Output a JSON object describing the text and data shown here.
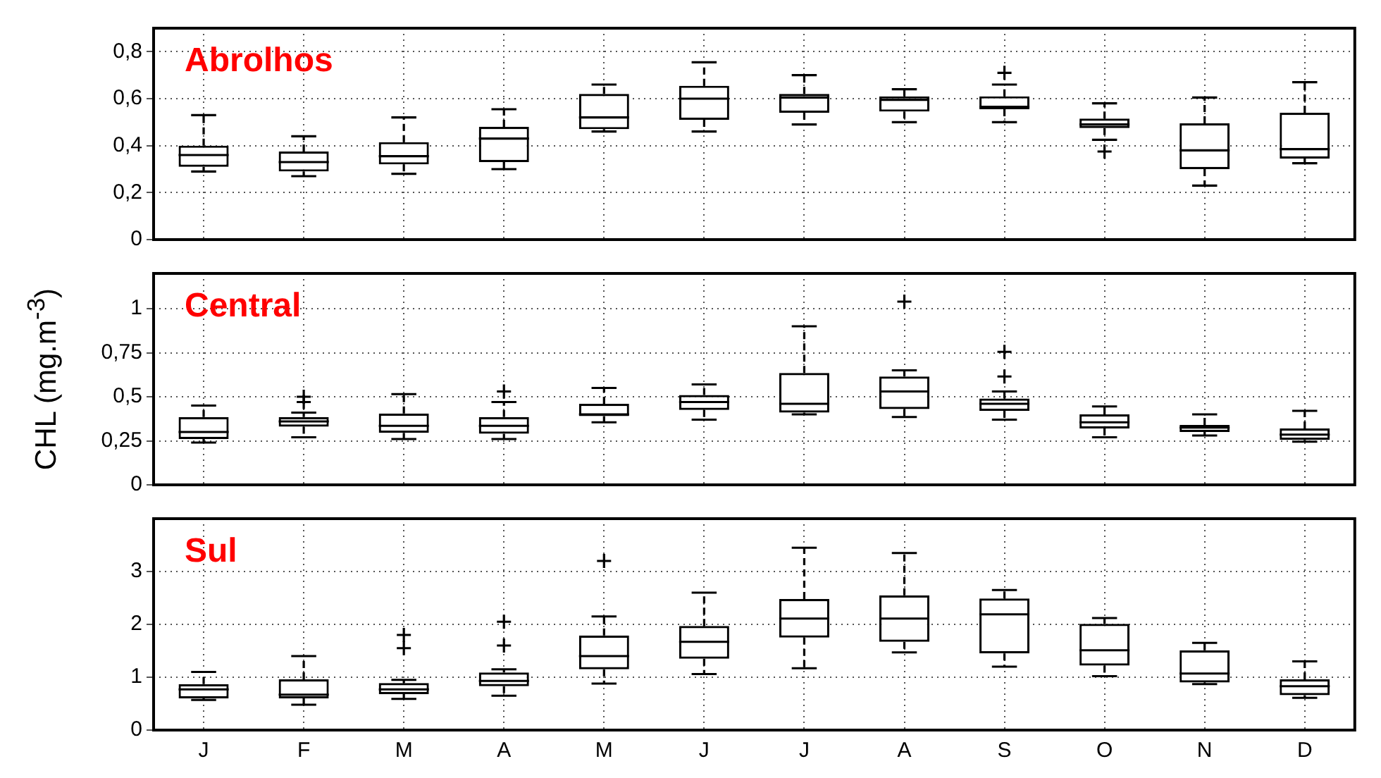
{
  "chart_data": [
    {
      "type": "box",
      "title": "Abrolhos",
      "categories": [
        null,
        null,
        null,
        null,
        null,
        null,
        null,
        null,
        null,
        null,
        null,
        null
      ],
      "ylim": [
        0,
        0.9
      ],
      "yticks": [
        0,
        {
          "value": 0.2,
          "label": "0,2"
        },
        {
          "value": 0.4,
          "label": "0,4"
        },
        {
          "value": 0.6,
          "label": "0,6"
        },
        {
          "value": 0.8,
          "label": "0,8"
        }
      ],
      "grid": true,
      "tick_labels": "y",
      "boxes": [
        {
          "low": 0.29,
          "q1": 0.31,
          "median": 0.36,
          "q3": 0.4,
          "high": 0.53
        },
        {
          "low": 0.27,
          "q1": 0.29,
          "median": 0.33,
          "q3": 0.375,
          "high": 0.44
        },
        {
          "low": 0.28,
          "q1": 0.32,
          "median": 0.355,
          "q3": 0.415,
          "high": 0.52
        },
        {
          "low": 0.3,
          "q1": 0.33,
          "median": 0.43,
          "q3": 0.48,
          "high": 0.555
        },
        {
          "low": 0.46,
          "q1": 0.47,
          "median": 0.52,
          "q3": 0.62,
          "high": 0.66
        },
        {
          "low": 0.46,
          "q1": 0.51,
          "median": 0.6,
          "q3": 0.655,
          "high": 0.755
        },
        {
          "low": 0.49,
          "q1": 0.54,
          "median": 0.605,
          "q3": 0.62,
          "high": 0.7
        },
        {
          "low": 0.5,
          "q1": 0.545,
          "median": 0.595,
          "q3": 0.61,
          "high": 0.64
        },
        {
          "low": 0.5,
          "q1": 0.555,
          "median": 0.565,
          "q3": 0.61,
          "high": 0.66,
          "outliers": [
            0.71
          ]
        },
        {
          "low": 0.425,
          "q1": 0.475,
          "median": 0.49,
          "q3": 0.515,
          "high": 0.58,
          "outliers": [
            0.375
          ]
        },
        {
          "low": 0.23,
          "q1": 0.3,
          "median": 0.38,
          "q3": 0.495,
          "high": 0.605
        },
        {
          "low": 0.325,
          "q1": 0.345,
          "median": 0.385,
          "q3": 0.54,
          "high": 0.67
        }
      ]
    },
    {
      "type": "box",
      "title": "Central",
      "ylabel": "CHL (mg.m$^{-3}$)",
      "categories": [
        null,
        null,
        null,
        null,
        null,
        null,
        null,
        null,
        null,
        null,
        null,
        null
      ],
      "ylim": [
        0,
        1.2
      ],
      "yticks": [
        0,
        {
          "value": 0.25,
          "label": "0,25"
        },
        {
          "value": 0.5,
          "label": "0,5"
        },
        {
          "value": 0.75,
          "label": "0,75"
        },
        1
      ],
      "grid": true,
      "tick_labels": "y",
      "boxes": [
        {
          "low": 0.24,
          "q1": 0.26,
          "median": 0.3,
          "q3": 0.385,
          "high": 0.45
        },
        {
          "low": 0.27,
          "q1": 0.33,
          "median": 0.36,
          "q3": 0.385,
          "high": 0.41,
          "outliers": [
            0.47,
            0.5
          ]
        },
        {
          "low": 0.26,
          "q1": 0.295,
          "median": 0.335,
          "q3": 0.405,
          "high": 0.515
        },
        {
          "low": 0.26,
          "q1": 0.29,
          "median": 0.335,
          "q3": 0.385,
          "high": 0.47,
          "outliers": [
            0.53
          ]
        },
        {
          "low": 0.355,
          "q1": 0.39,
          "median": 0.4,
          "q3": 0.46,
          "high": 0.55
        },
        {
          "low": 0.37,
          "q1": 0.425,
          "median": 0.47,
          "q3": 0.51,
          "high": 0.57
        },
        {
          "low": 0.4,
          "q1": 0.41,
          "median": 0.46,
          "q3": 0.635,
          "high": 0.9
        },
        {
          "low": 0.385,
          "q1": 0.43,
          "median": 0.53,
          "q3": 0.615,
          "high": 0.65,
          "outliers": [
            1.04
          ]
        },
        {
          "low": 0.37,
          "q1": 0.42,
          "median": 0.46,
          "q3": 0.49,
          "high": 0.53,
          "outliers": [
            0.615,
            0.755
          ]
        },
        {
          "low": 0.27,
          "q1": 0.32,
          "median": 0.355,
          "q3": 0.4,
          "high": 0.445
        },
        {
          "low": 0.28,
          "q1": 0.3,
          "median": 0.325,
          "q3": 0.34,
          "high": 0.4
        },
        {
          "low": 0.245,
          "q1": 0.255,
          "median": 0.285,
          "q3": 0.32,
          "high": 0.42
        }
      ]
    },
    {
      "type": "box",
      "title": "Sul",
      "categories": [
        "J",
        "F",
        "M",
        "A",
        "M",
        "J",
        "J",
        "A",
        "S",
        "O",
        "N",
        "D"
      ],
      "ylim": [
        0,
        4
      ],
      "yticks": [
        0,
        1,
        2,
        3
      ],
      "grid": true,
      "boxes": [
        {
          "low": 0.57,
          "q1": 0.6,
          "median": 0.77,
          "q3": 0.87,
          "high": 1.1
        },
        {
          "low": 0.48,
          "q1": 0.6,
          "median": 0.67,
          "q3": 0.96,
          "high": 1.4
        },
        {
          "low": 0.59,
          "q1": 0.68,
          "median": 0.77,
          "q3": 0.89,
          "high": 0.95,
          "outliers": [
            1.55,
            1.8
          ]
        },
        {
          "low": 0.65,
          "q1": 0.83,
          "median": 0.93,
          "q3": 1.09,
          "high": 1.15,
          "outliers": [
            1.6,
            2.05
          ]
        },
        {
          "low": 0.88,
          "q1": 1.15,
          "median": 1.4,
          "q3": 1.79,
          "high": 2.15,
          "outliers": [
            3.2
          ]
        },
        {
          "low": 1.06,
          "q1": 1.35,
          "median": 1.67,
          "q3": 1.97,
          "high": 2.6
        },
        {
          "low": 1.17,
          "q1": 1.75,
          "median": 2.11,
          "q3": 2.48,
          "high": 3.45
        },
        {
          "low": 1.47,
          "q1": 1.67,
          "median": 2.11,
          "q3": 2.55,
          "high": 3.35
        },
        {
          "low": 1.2,
          "q1": 1.45,
          "median": 2.19,
          "q3": 2.49,
          "high": 2.65
        },
        {
          "low": 1.02,
          "q1": 1.22,
          "median": 1.51,
          "q3": 2.01,
          "high": 2.12
        },
        {
          "low": 0.87,
          "q1": 0.9,
          "median": 1.07,
          "q3": 1.51,
          "high": 1.65
        },
        {
          "low": 0.61,
          "q1": 0.66,
          "median": 0.83,
          "q3": 0.96,
          "high": 1.3
        }
      ]
    }
  ]
}
